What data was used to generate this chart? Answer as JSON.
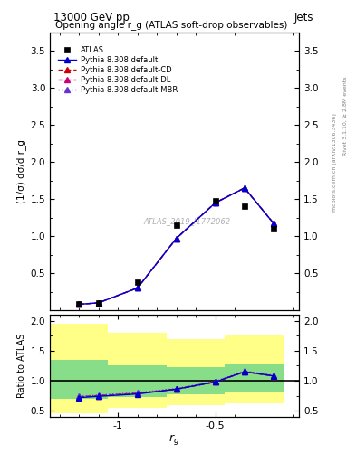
{
  "title_top": "13000 GeV pp",
  "title_right": "Jets",
  "plot_title": "Opening angle r_g (ATLAS soft-drop observables)",
  "watermark": "ATLAS_2019_I1772062",
  "right_label_top": "Rivet 3.1.10, ≥ 2.8M events",
  "right_label_bot": "mcplots.cern.ch [arXiv:1306.3436]",
  "xlabel": "r_g",
  "ylabel_main": "(1/σ) dσ/d r_g",
  "ylabel_ratio": "Ratio to ATLAS",
  "x_data": [
    -1.2,
    -1.1,
    -0.9,
    -0.7,
    -0.5,
    -0.35,
    -0.2
  ],
  "atlas_y": [
    0.08,
    0.1,
    0.38,
    1.15,
    1.48,
    1.4,
    1.1
  ],
  "pythia_default_y": [
    0.08,
    0.1,
    0.3,
    0.97,
    1.45,
    1.65,
    1.17
  ],
  "pythia_cd_y": [
    0.08,
    0.1,
    0.3,
    0.97,
    1.45,
    1.65,
    1.17
  ],
  "pythia_dl_y": [
    0.08,
    0.1,
    0.3,
    0.97,
    1.45,
    1.65,
    1.17
  ],
  "pythia_mbr_y": [
    0.08,
    0.1,
    0.3,
    0.97,
    1.45,
    1.65,
    1.17
  ],
  "ratio_default_y": [
    0.72,
    0.74,
    0.78,
    0.86,
    0.98,
    1.15,
    1.08
  ],
  "ratio_cd_y": [
    0.73,
    0.75,
    0.79,
    0.86,
    0.98,
    1.15,
    1.08
  ],
  "ratio_dl_y": [
    0.73,
    0.75,
    0.79,
    0.86,
    0.98,
    1.15,
    1.08
  ],
  "ratio_mbr_y": [
    0.74,
    0.76,
    0.8,
    0.87,
    0.99,
    1.16,
    1.09
  ],
  "ylim_main": [
    0.0,
    3.75
  ],
  "ylim_ratio": [
    0.4,
    2.1
  ],
  "yticks_main": [
    0.5,
    1.0,
    1.5,
    2.0,
    2.5,
    3.0,
    3.5
  ],
  "yticks_ratio": [
    0.5,
    1.0,
    1.5,
    2.0
  ],
  "xlim": [
    -1.35,
    -0.07
  ],
  "xticks": [
    -1.0,
    -0.5
  ],
  "xticklabels": [
    "-1",
    "-0.5"
  ],
  "color_default": "#0000cc",
  "color_cd": "#cc0000",
  "color_dl": "#cc0077",
  "color_mbr": "#6633cc",
  "color_atlas": "#000000",
  "yellow_band_edges": [
    -1.35,
    -1.05,
    -0.75,
    -0.45,
    -0.15
  ],
  "yellow_band_lo": [
    0.45,
    0.55,
    0.6,
    0.62,
    0.62
  ],
  "yellow_band_hi": [
    1.95,
    1.8,
    1.7,
    1.75,
    1.75
  ],
  "green_band_edges": [
    -1.35,
    -1.05,
    -0.75,
    -0.45,
    -0.15
  ],
  "green_band_lo": [
    0.7,
    0.73,
    0.78,
    0.82,
    0.82
  ],
  "green_band_hi": [
    1.35,
    1.25,
    1.22,
    1.28,
    1.28
  ]
}
